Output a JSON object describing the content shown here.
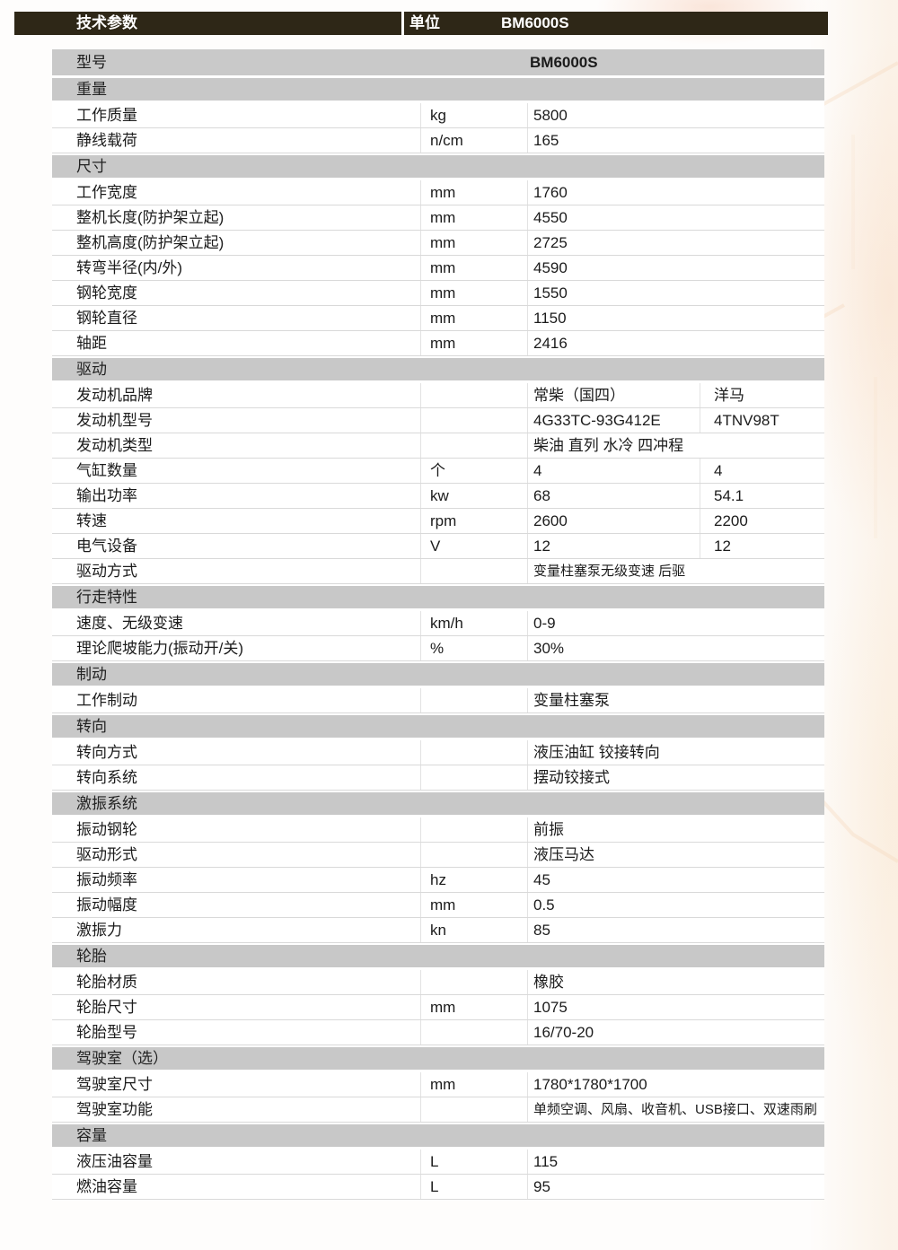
{
  "header": {
    "col_param": "技术参数",
    "col_unit": "单位",
    "col_model": "BM6000S"
  },
  "colors": {
    "header_bar": "#2e2717",
    "section_gray": "#c8c8c8",
    "accent_wash": "#f7d2be"
  },
  "table": {
    "rows": [
      {
        "t": "model",
        "label": "型号",
        "value": "BM6000S"
      },
      {
        "t": "sec",
        "label": "重量"
      },
      {
        "t": "r",
        "label": "工作质量",
        "unit": "kg",
        "v1": "5800"
      },
      {
        "t": "r",
        "label": "静线载荷",
        "unit": "n/cm",
        "v1": "165"
      },
      {
        "t": "sec",
        "label": "尺寸"
      },
      {
        "t": "r",
        "label": "工作宽度",
        "unit": "mm",
        "v1": "1760"
      },
      {
        "t": "r",
        "label": "整机长度(防护架立起)",
        "unit": "mm",
        "v1": "4550"
      },
      {
        "t": "r",
        "label": "整机高度(防护架立起)",
        "unit": "mm",
        "v1": "2725"
      },
      {
        "t": "r",
        "label": "转弯半径(内/外)",
        "unit": "mm",
        "v1": "4590"
      },
      {
        "t": "r",
        "label": "钢轮宽度",
        "unit": "mm",
        "v1": "1550"
      },
      {
        "t": "r",
        "label": "钢轮直径",
        "unit": "mm",
        "v1": "1150"
      },
      {
        "t": "r",
        "label": "轴距",
        "unit": "mm",
        "v1": "2416"
      },
      {
        "t": "sec",
        "label": "驱动"
      },
      {
        "t": "r",
        "label": "发动机品牌",
        "unit": "",
        "v1": "常柴（国四）",
        "v2": "洋马"
      },
      {
        "t": "r",
        "label": "发动机型号",
        "unit": "",
        "v1": "4G33TC-93G412E",
        "v2": "4TNV98T"
      },
      {
        "t": "r",
        "label": "发动机类型",
        "unit": "",
        "v1": "柴油 直列 水冷 四冲程"
      },
      {
        "t": "r",
        "label": "气缸数量",
        "unit": "个",
        "v1": "4",
        "v2": "4"
      },
      {
        "t": "r",
        "label": "输出功率",
        "unit": "kw",
        "v1": "68",
        "v2": "54.1"
      },
      {
        "t": "r",
        "label": "转速",
        "unit": "rpm",
        "v1": "2600",
        "v2": "2200"
      },
      {
        "t": "r",
        "label": "电气设备",
        "unit": "V",
        "v1": "12",
        "v2": "12"
      },
      {
        "t": "r",
        "label": "驱动方式",
        "unit": "",
        "v1": "变量柱塞泵无级变速  后驱",
        "small": true
      },
      {
        "t": "sec",
        "label": "行走特性"
      },
      {
        "t": "r",
        "label": "速度、无级变速",
        "unit": "km/h",
        "v1": "0-9"
      },
      {
        "t": "r",
        "label": "理论爬坡能力(振动开/关)",
        "unit": "%",
        "v1": "30%"
      },
      {
        "t": "sec",
        "label": "制动"
      },
      {
        "t": "r",
        "label": "工作制动",
        "unit": "",
        "v1": "变量柱塞泵"
      },
      {
        "t": "sec",
        "label": "转向"
      },
      {
        "t": "r",
        "label": "转向方式",
        "unit": "",
        "v1": "液压油缸 铰接转向"
      },
      {
        "t": "r",
        "label": "转向系统",
        "unit": "",
        "v1": "摆动铰接式"
      },
      {
        "t": "sec",
        "label": "激振系统"
      },
      {
        "t": "r",
        "label": "振动钢轮",
        "unit": "",
        "v1": "前振"
      },
      {
        "t": "r",
        "label": "驱动形式",
        "unit": "",
        "v1": "液压马达"
      },
      {
        "t": "r",
        "label": "振动频率",
        "unit": "hz",
        "v1": "45"
      },
      {
        "t": "r",
        "label": "振动幅度",
        "unit": "mm",
        "v1": "0.5"
      },
      {
        "t": "r",
        "label": "激振力",
        "unit": "kn",
        "v1": "85"
      },
      {
        "t": "sec",
        "label": "轮胎"
      },
      {
        "t": "r",
        "label": "轮胎材质",
        "unit": "",
        "v1": "橡胶"
      },
      {
        "t": "r",
        "label": "轮胎尺寸",
        "unit": "mm",
        "v1": "1075"
      },
      {
        "t": "r",
        "label": "轮胎型号",
        "unit": "",
        "v1": "16/70-20"
      },
      {
        "t": "sec",
        "label": "驾驶室（选）"
      },
      {
        "t": "r",
        "label": "驾驶室尺寸",
        "unit": "mm",
        "v1": "1780*1780*1700"
      },
      {
        "t": "r",
        "label": "驾驶室功能",
        "unit": "",
        "v1": "单频空调、风扇、收音机、USB接口、双速雨刷",
        "small": true
      },
      {
        "t": "sec",
        "label": "容量"
      },
      {
        "t": "r",
        "label": "液压油容量",
        "unit": "L",
        "v1": "115"
      },
      {
        "t": "r",
        "label": "燃油容量",
        "unit": "L",
        "v1": "95"
      }
    ]
  }
}
